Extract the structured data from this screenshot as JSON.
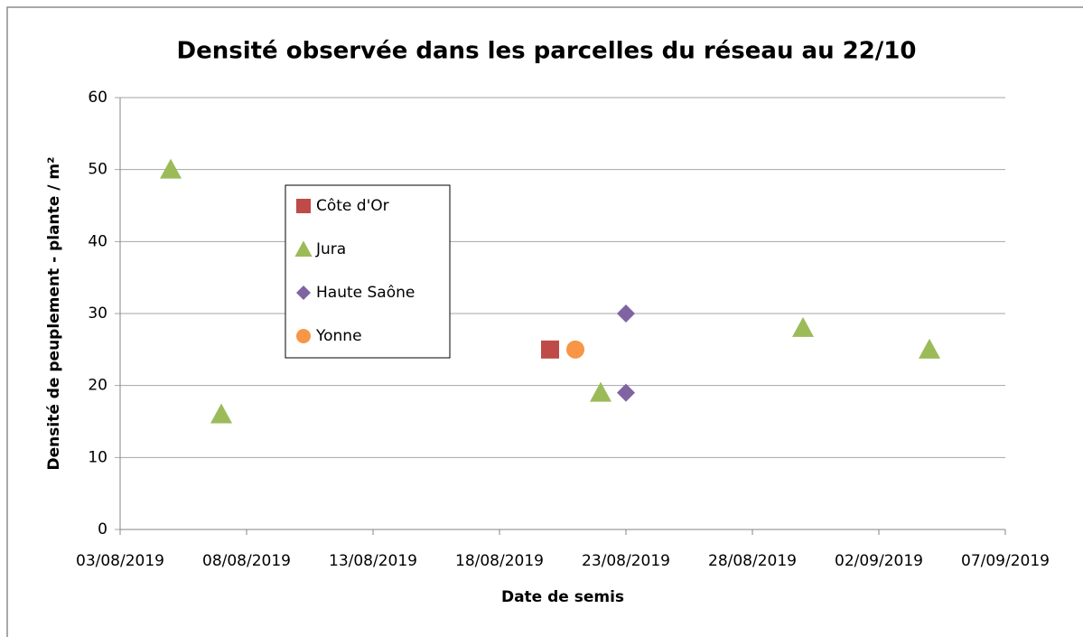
{
  "chart_data": {
    "type": "scatter",
    "title": "Densité observée dans les parcelles du réseau au 22/10",
    "x_label": "Date de semis",
    "y_label": "Densité de peuplement - plante / m²",
    "xlim": [
      "03/08/2019",
      "07/09/2019"
    ],
    "xticks": [
      "03/08/2019",
      "08/08/2019",
      "13/08/2019",
      "18/08/2019",
      "23/08/2019",
      "28/08/2019",
      "02/09/2019",
      "07/09/2019"
    ],
    "ylim": [
      0,
      60
    ],
    "yticks": [
      0,
      10,
      20,
      30,
      40,
      50,
      60
    ],
    "grid": true,
    "legend": "inside-left",
    "series": [
      {
        "name": "Côte d'Or",
        "color": "#be4b48",
        "marker": "square",
        "x": [
          "20/08/2019"
        ],
        "values": [
          25
        ]
      },
      {
        "name": "Jura",
        "color": "#9bbb59",
        "marker": "triangle",
        "x": [
          "05/08/2019",
          "07/08/2019",
          "22/08/2019",
          "30/08/2019",
          "04/09/2019"
        ],
        "values": [
          50,
          16,
          19,
          28,
          25
        ]
      },
      {
        "name": "Haute Saône",
        "color": "#8064a2",
        "marker": "diamond",
        "x": [
          "23/08/2019",
          "23/08/2019"
        ],
        "values": [
          30,
          19
        ]
      },
      {
        "name": "Yonne",
        "color": "#f79646",
        "marker": "circle",
        "x": [
          "21/08/2019"
        ],
        "values": [
          25
        ]
      }
    ]
  }
}
